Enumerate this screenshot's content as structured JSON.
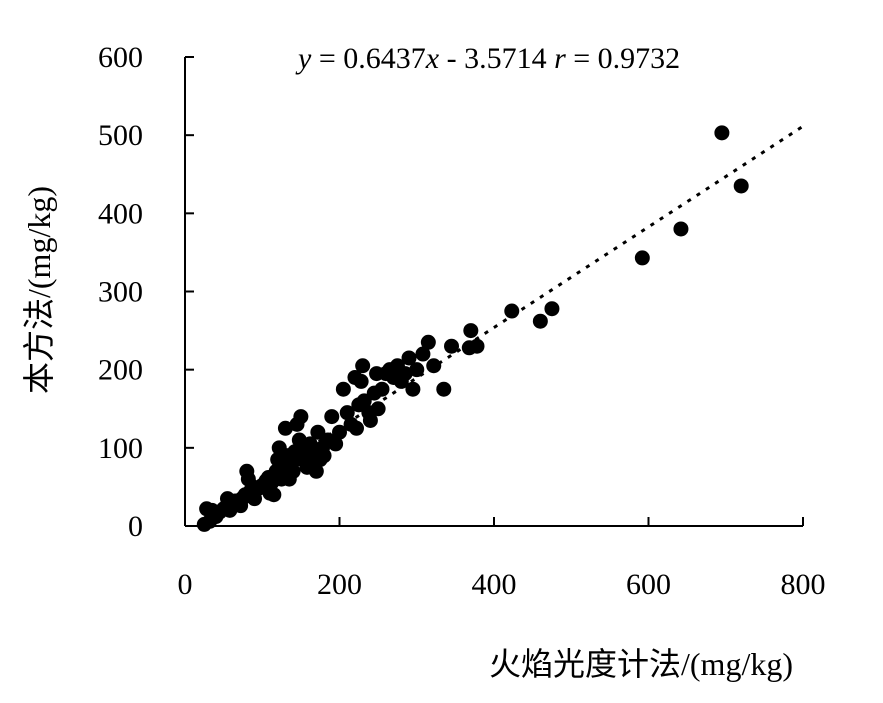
{
  "chart_data": {
    "type": "scatter",
    "xlabel": "火焰光度计法/(mg/kg)",
    "ylabel": "本方法/(mg/kg)",
    "xlim": [
      0,
      800
    ],
    "ylim": [
      0,
      600
    ],
    "x_ticks": [
      "0",
      "200",
      "400",
      "600",
      "800"
    ],
    "y_ticks": [
      "0",
      "100",
      "200",
      "300",
      "400",
      "500",
      "600"
    ],
    "grid": false,
    "annotation": {
      "y_var": "y",
      "eq_part": " = 0.6437",
      "x_var": "x",
      "intercept_part": " - 3.5714 ",
      "r_var": "r",
      "r_part": " = 0.9732"
    },
    "trendline": {
      "type": "linear",
      "slope": 0.6437,
      "intercept": -3.5714
    },
    "series": [
      {
        "marker_color": "#000000",
        "points": [
          [
            25,
            2
          ],
          [
            28,
            22
          ],
          [
            32,
            6
          ],
          [
            35,
            20
          ],
          [
            40,
            12
          ],
          [
            45,
            18
          ],
          [
            50,
            22
          ],
          [
            55,
            35
          ],
          [
            58,
            20
          ],
          [
            62,
            28
          ],
          [
            65,
            32
          ],
          [
            70,
            30
          ],
          [
            72,
            26
          ],
          [
            75,
            36
          ],
          [
            78,
            40
          ],
          [
            80,
            70
          ],
          [
            82,
            60
          ],
          [
            85,
            45
          ],
          [
            88,
            50
          ],
          [
            90,
            35
          ],
          [
            95,
            48
          ],
          [
            100,
            52
          ],
          [
            105,
            58
          ],
          [
            108,
            62
          ],
          [
            110,
            42
          ],
          [
            112,
            55
          ],
          [
            115,
            40
          ],
          [
            118,
            70
          ],
          [
            120,
            85
          ],
          [
            122,
            100
          ],
          [
            125,
            60
          ],
          [
            128,
            75
          ],
          [
            130,
            125
          ],
          [
            132,
            90
          ],
          [
            135,
            60
          ],
          [
            138,
            80
          ],
          [
            140,
            70
          ],
          [
            142,
            95
          ],
          [
            145,
            130
          ],
          [
            148,
            110
          ],
          [
            150,
            140
          ],
          [
            152,
            85
          ],
          [
            155,
            100
          ],
          [
            158,
            75
          ],
          [
            160,
            90
          ],
          [
            162,
            105
          ],
          [
            165,
            80
          ],
          [
            168,
            95
          ],
          [
            170,
            70
          ],
          [
            172,
            120
          ],
          [
            175,
            85
          ],
          [
            178,
            100
          ],
          [
            180,
            90
          ],
          [
            185,
            110
          ],
          [
            190,
            140
          ],
          [
            195,
            105
          ],
          [
            200,
            120
          ],
          [
            205,
            175
          ],
          [
            210,
            145
          ],
          [
            215,
            130
          ],
          [
            220,
            190
          ],
          [
            222,
            125
          ],
          [
            225,
            155
          ],
          [
            228,
            185
          ],
          [
            230,
            205
          ],
          [
            232,
            160
          ],
          [
            238,
            145
          ],
          [
            240,
            135
          ],
          [
            245,
            170
          ],
          [
            248,
            195
          ],
          [
            250,
            150
          ],
          [
            255,
            175
          ],
          [
            260,
            195
          ],
          [
            265,
            200
          ],
          [
            270,
            190
          ],
          [
            275,
            205
          ],
          [
            280,
            185
          ],
          [
            285,
            195
          ],
          [
            290,
            215
          ],
          [
            295,
            175
          ],
          [
            300,
            200
          ],
          [
            308,
            220
          ],
          [
            315,
            235
          ],
          [
            322,
            205
          ],
          [
            335,
            175
          ],
          [
            345,
            230
          ],
          [
            368,
            228
          ],
          [
            370,
            250
          ],
          [
            378,
            230
          ],
          [
            423,
            275
          ],
          [
            460,
            262
          ],
          [
            475,
            278
          ],
          [
            592,
            343
          ],
          [
            642,
            380
          ],
          [
            695,
            503
          ],
          [
            720,
            435
          ]
        ]
      }
    ]
  }
}
